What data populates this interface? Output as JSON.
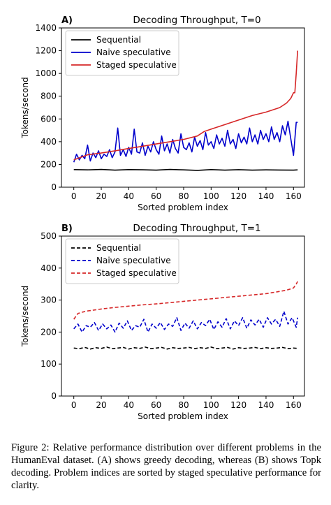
{
  "caption": "Figure 2: Relative performance distribution over different problems in the HumanEval dataset. (A) shows greedy decoding, whereas (B) shows Topk decoding. Problem indices are sorted by staged speculative performance for clarity.",
  "colors": {
    "sequential": "#000000",
    "naive": "#0000cc",
    "staged": "#d62728"
  },
  "chart_data": [
    {
      "type": "line",
      "panel_label": "A)",
      "title": "Decoding Throughput, T=0",
      "xlabel": "Sorted problem index",
      "ylabel": "Tokens/second",
      "xlim": [
        -9,
        168
      ],
      "ylim": [
        0,
        1400
      ],
      "xticks": [
        0,
        20,
        40,
        60,
        80,
        100,
        120,
        140,
        160
      ],
      "yticks": [
        0,
        200,
        400,
        600,
        800,
        1000,
        1200,
        1400
      ],
      "line_style": "solid",
      "legend_position": "top-left",
      "grid": false,
      "series": [
        {
          "name": "Sequential",
          "color": "#000000",
          "x": [
            0,
            10,
            20,
            30,
            40,
            50,
            60,
            70,
            80,
            90,
            100,
            110,
            120,
            130,
            140,
            150,
            160,
            163
          ],
          "y": [
            155,
            152,
            156,
            150,
            155,
            153,
            150,
            156,
            152,
            148,
            155,
            150,
            154,
            150,
            152,
            151,
            150,
            152
          ]
        },
        {
          "name": "Naive speculative",
          "color": "#0000cc",
          "x": [
            0,
            2,
            4,
            6,
            8,
            10,
            12,
            14,
            16,
            18,
            20,
            22,
            24,
            26,
            28,
            30,
            32,
            34,
            36,
            38,
            40,
            42,
            44,
            46,
            48,
            50,
            52,
            54,
            56,
            58,
            60,
            62,
            64,
            66,
            68,
            70,
            72,
            74,
            76,
            78,
            80,
            82,
            84,
            86,
            88,
            90,
            92,
            94,
            96,
            98,
            100,
            102,
            104,
            106,
            108,
            110,
            112,
            114,
            116,
            118,
            120,
            122,
            124,
            126,
            128,
            130,
            132,
            134,
            136,
            138,
            140,
            142,
            144,
            146,
            148,
            150,
            152,
            154,
            156,
            158,
            160,
            162,
            163
          ],
          "y": [
            220,
            290,
            240,
            280,
            250,
            370,
            230,
            300,
            260,
            320,
            250,
            290,
            270,
            330,
            260,
            310,
            520,
            280,
            330,
            270,
            350,
            290,
            510,
            310,
            300,
            390,
            280,
            360,
            310,
            400,
            330,
            290,
            450,
            320,
            380,
            300,
            420,
            340,
            300,
            470,
            350,
            330,
            390,
            310,
            440,
            360,
            410,
            330,
            480,
            370,
            400,
            340,
            460,
            380,
            430,
            360,
            500,
            380,
            420,
            340,
            470,
            390,
            440,
            380,
            520,
            400,
            460,
            380,
            500,
            420,
            470,
            400,
            530,
            420,
            480,
            400,
            540,
            460,
            580,
            430,
            280,
            570,
            570
          ]
        },
        {
          "name": "Staged speculative",
          "color": "#d62728",
          "x": [
            0,
            10,
            20,
            30,
            40,
            50,
            60,
            70,
            80,
            90,
            95,
            100,
            110,
            120,
            130,
            140,
            145,
            150,
            155,
            158,
            160,
            161,
            162,
            163
          ],
          "y": [
            240,
            285,
            300,
            320,
            340,
            360,
            380,
            400,
            420,
            450,
            490,
            510,
            550,
            590,
            630,
            660,
            680,
            700,
            740,
            780,
            830,
            830,
            1000,
            1200
          ]
        }
      ]
    },
    {
      "type": "line",
      "panel_label": "B)",
      "title": "Decoding Throughput, T=1",
      "xlabel": "Sorted problem index",
      "ylabel": "Tokens/second",
      "xlim": [
        -9,
        168
      ],
      "ylim": [
        0,
        500
      ],
      "xticks": [
        0,
        20,
        40,
        60,
        80,
        100,
        120,
        140,
        160
      ],
      "yticks": [
        0,
        100,
        200,
        300,
        400,
        500
      ],
      "line_style": "dashed",
      "legend_position": "top-left",
      "grid": false,
      "series": [
        {
          "name": "Sequential",
          "color": "#000000",
          "x": [
            0,
            4,
            8,
            12,
            16,
            20,
            24,
            28,
            32,
            36,
            40,
            44,
            48,
            52,
            56,
            60,
            64,
            68,
            72,
            76,
            80,
            84,
            88,
            92,
            96,
            100,
            104,
            108,
            112,
            116,
            120,
            124,
            128,
            132,
            136,
            140,
            144,
            148,
            152,
            156,
            160,
            163
          ],
          "y": [
            150,
            148,
            152,
            147,
            151,
            149,
            153,
            148,
            150,
            152,
            147,
            151,
            149,
            153,
            148,
            150,
            152,
            147,
            151,
            149,
            150,
            152,
            148,
            151,
            149,
            153,
            148,
            150,
            152,
            147,
            151,
            149,
            150,
            152,
            148,
            151,
            149,
            150,
            152,
            148,
            150,
            149
          ]
        },
        {
          "name": "Naive speculative",
          "color": "#0000cc",
          "x": [
            0,
            3,
            6,
            9,
            12,
            15,
            18,
            21,
            24,
            27,
            30,
            33,
            36,
            39,
            42,
            45,
            48,
            51,
            54,
            57,
            60,
            63,
            66,
            69,
            72,
            75,
            78,
            81,
            84,
            87,
            90,
            93,
            96,
            99,
            102,
            105,
            108,
            111,
            114,
            117,
            120,
            123,
            126,
            129,
            132,
            135,
            138,
            141,
            144,
            147,
            150,
            153,
            156,
            159,
            162,
            163
          ],
          "y": [
            210,
            225,
            200,
            220,
            215,
            230,
            205,
            225,
            210,
            222,
            200,
            228,
            212,
            235,
            205,
            220,
            215,
            240,
            200,
            225,
            212,
            230,
            208,
            225,
            218,
            245,
            205,
            228,
            212,
            235,
            210,
            230,
            220,
            240,
            208,
            232,
            215,
            242,
            210,
            235,
            220,
            245,
            212,
            238,
            222,
            240,
            215,
            245,
            225,
            240,
            218,
            265,
            225,
            245,
            215,
            245
          ]
        },
        {
          "name": "Staged speculative",
          "color": "#d62728",
          "x": [
            0,
            3,
            6,
            10,
            20,
            30,
            40,
            50,
            60,
            70,
            80,
            90,
            100,
            110,
            120,
            130,
            140,
            150,
            155,
            158,
            160,
            162,
            163
          ],
          "y": [
            240,
            258,
            262,
            266,
            272,
            277,
            281,
            285,
            288,
            292,
            296,
            300,
            304,
            308,
            312,
            316,
            320,
            327,
            331,
            335,
            338,
            350,
            358
          ]
        }
      ]
    }
  ]
}
